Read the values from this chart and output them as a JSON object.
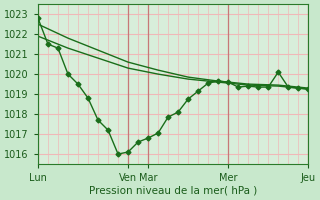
{
  "bg_color": "#c8e8cc",
  "plot_bg_color": "#d8eeda",
  "grid_color_h": "#f0b8b8",
  "grid_color_v": "#f0b8b8",
  "line_color": "#1a6e1a",
  "title": "Pression niveau de la mer( hPa )",
  "ylim": [
    1015.5,
    1023.5
  ],
  "yticks": [
    1016,
    1017,
    1018,
    1019,
    1020,
    1021,
    1022,
    1023
  ],
  "day_labels": [
    "Lun",
    "Ven",
    "Mar",
    "Mer",
    "Jeu"
  ],
  "day_positions": [
    0,
    9,
    11,
    19,
    27
  ],
  "series1_x": [
    0,
    1,
    2,
    3,
    4,
    5,
    6,
    7,
    8,
    9,
    10,
    11,
    12,
    13,
    14,
    15,
    16,
    17,
    18,
    19,
    20,
    21,
    22,
    23,
    24,
    25,
    26,
    27
  ],
  "series1_y": [
    1022.8,
    1021.5,
    1021.3,
    1020.0,
    1019.5,
    1018.8,
    1017.7,
    1017.2,
    1016.0,
    1016.1,
    1016.6,
    1016.8,
    1017.05,
    1017.85,
    1018.1,
    1018.75,
    1019.15,
    1019.55,
    1019.65,
    1019.6,
    1019.35,
    1019.4,
    1019.35,
    1019.35,
    1020.1,
    1019.35,
    1019.3,
    1019.25
  ],
  "series2_x": [
    0,
    3,
    6,
    9,
    12,
    15,
    18,
    21,
    24,
    27
  ],
  "series2_y": [
    1022.5,
    1021.8,
    1021.2,
    1020.6,
    1020.2,
    1019.85,
    1019.65,
    1019.5,
    1019.45,
    1019.3
  ],
  "series3_x": [
    0,
    3,
    6,
    9,
    12,
    15,
    18,
    21,
    24,
    27
  ],
  "series3_y": [
    1021.9,
    1021.3,
    1020.8,
    1020.3,
    1020.0,
    1019.75,
    1019.6,
    1019.45,
    1019.4,
    1019.25
  ]
}
